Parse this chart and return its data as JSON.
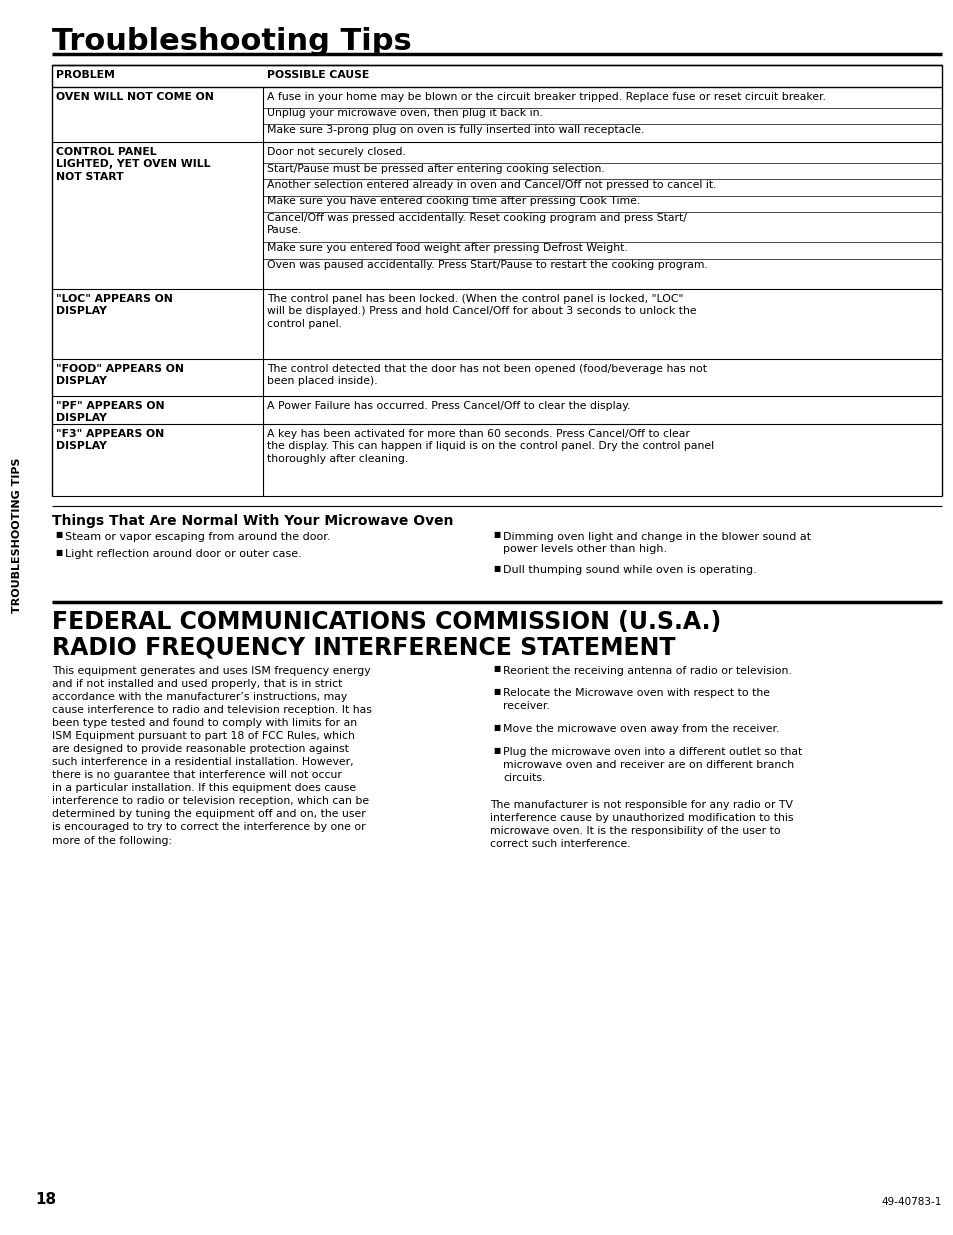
{
  "bg_color": "#ffffff",
  "text_color": "#000000",
  "title": "Troubleshooting Tips",
  "sidebar_text": "TROUBLESHOOTING TIPS",
  "page_num": "18",
  "catalog_num": "49-40783-1",
  "table_header": [
    "PROBLEM",
    "POSSIBLE CAUSE"
  ],
  "table_rows": [
    {
      "problem": "OVEN WILL NOT COME ON",
      "causes": [
        "A fuse in your home may be blown or the circuit breaker tripped. Replace fuse or reset circuit breaker.",
        "Unplug your microwave oven, then plug it back in.",
        "Make sure 3-prong plug on oven is fully inserted into wall receptacle."
      ]
    },
    {
      "problem": "CONTROL PANEL\nLIGHTED, YET OVEN WILL\nNOT START",
      "causes": [
        "Door not securely closed.",
        "Start/Pause must be pressed after entering cooking selection.",
        "Another selection entered already in oven and Cancel/Off not pressed to cancel it.",
        "Make sure you have entered cooking time after pressing Cook Time.",
        "Cancel/Off was pressed accidentally. Reset cooking program and press Start/\nPause.",
        "Make sure you entered food weight after pressing Defrost Weight.",
        "Oven was paused accidentally. Press Start/Pause to restart the cooking program."
      ]
    },
    {
      "problem": "\"LOC\" APPEARS ON\nDISPLAY",
      "causes": [
        "The control panel has been locked. (When the control panel is locked, \"LOC\"\nwill be displayed.) Press and hold Cancel/Off for about 3 seconds to unlock the\ncontrol panel."
      ]
    },
    {
      "problem": "\"FOOD\" APPEARS ON\nDISPLAY",
      "causes": [
        "The control detected that the door has not been opened (food/beverage has not\nbeen placed inside)."
      ]
    },
    {
      "problem": "\"PF\" APPEARS ON\nDISPLAY",
      "causes": [
        "A Power Failure has occurred. Press Cancel/Off to clear the display."
      ]
    },
    {
      "problem": "\"F3\" APPEARS ON\nDISPLAY",
      "causes": [
        "A key has been activated for more than 60 seconds. Press Cancel/Off to clear\nthe display. This can happen if liquid is on the control panel. Dry the control panel\nthoroughly after cleaning."
      ]
    }
  ],
  "things_title": "Things That Are Normal With Your Microwave Oven",
  "things_left": [
    "Steam or vapor escaping from around the door.",
    "Light reflection around door or outer case."
  ],
  "things_right": [
    "Dimming oven light and change in the blower sound at\npower levels other than high.",
    "Dull thumping sound while oven is operating."
  ],
  "fcc_title_line1": "FEDERAL COMMUNICATIONS COMMISSION (U.S.A.)",
  "fcc_title_line2": "RADIO FREQUENCY INTERFERENCE STATEMENT",
  "fcc_left_text": "This equipment generates and uses ISM frequency energy\nand if not installed and used properly, that is in strict\naccordance with the manufacturer’s instructions, may\ncause interference to radio and television reception. It has\nbeen type tested and found to comply with limits for an\nISM Equipment pursuant to part 18 of FCC Rules, which\nare designed to provide reasonable protection against\nsuch interference in a residential installation. However,\nthere is no guarantee that interference will not occur\nin a particular installation. If this equipment does cause\ninterference to radio or television reception, which can be\ndetermined by tuning the equipment off and on, the user\nis encouraged to try to correct the interference by one or\nmore of the following:",
  "fcc_right_bullets": [
    "Reorient the receiving antenna of radio or television.",
    "Relocate the Microwave oven with respect to the\nreceiver.",
    "Move the microwave oven away from the receiver.",
    "Plug the microwave oven into a different outlet so that\nmicrowave oven and receiver are on different branch\ncircuits."
  ],
  "fcc_bottom_text": "The manufacturer is not responsible for any radio or TV\ninterference cause by unauthorized modification to this\nmicrowave oven. It is the responsibility of the user to\ncorrect such interference."
}
